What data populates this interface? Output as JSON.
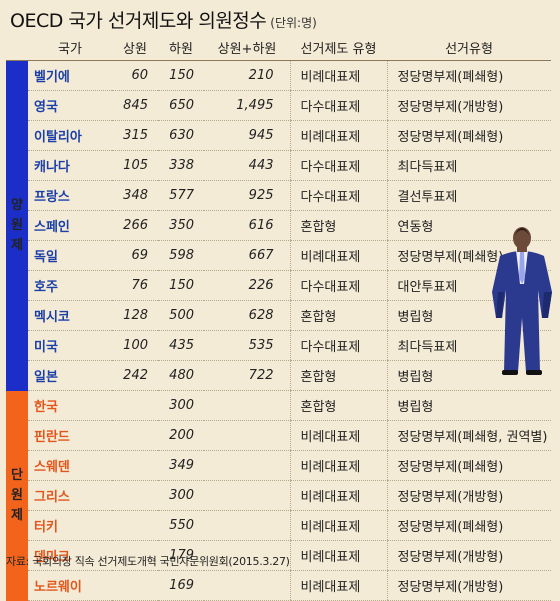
{
  "title": "OECD 국가 선거제도와 의원정수",
  "unit": "(단위:명)",
  "headers": [
    "국가",
    "상원",
    "하원",
    "상원+하원",
    "선거제도 유형",
    "선거유형"
  ],
  "groups": {
    "bicameral": "양원제",
    "unicameral": "단원제"
  },
  "bicameral_rows": [
    {
      "country": "벨기에",
      "upper": "60",
      "lower": "150",
      "total": "210",
      "system": "비례대표제",
      "type": "정당명부제(폐쇄형)"
    },
    {
      "country": "영국",
      "upper": "845",
      "lower": "650",
      "total": "1,495",
      "system": "다수대표제",
      "type": "정당명부제(개방형)"
    },
    {
      "country": "이탈리아",
      "upper": "315",
      "lower": "630",
      "total": "945",
      "system": "비례대표제",
      "type": "정당명부제(폐쇄형)"
    },
    {
      "country": "캐나다",
      "upper": "105",
      "lower": "338",
      "total": "443",
      "system": "다수대표제",
      "type": "최다득표제"
    },
    {
      "country": "프랑스",
      "upper": "348",
      "lower": "577",
      "total": "925",
      "system": "다수대표제",
      "type": "결선투표제"
    },
    {
      "country": "스페인",
      "upper": "266",
      "lower": "350",
      "total": "616",
      "system": "혼합형",
      "type": "연동형"
    },
    {
      "country": "독일",
      "upper": "69",
      "lower": "598",
      "total": "667",
      "system": "비례대표제",
      "type": "정당명부제(폐쇄형)"
    },
    {
      "country": "호주",
      "upper": "76",
      "lower": "150",
      "total": "226",
      "system": "다수대표제",
      "type": "대안투표제"
    },
    {
      "country": "멕시코",
      "upper": "128",
      "lower": "500",
      "total": "628",
      "system": "혼합형",
      "type": "병립형"
    },
    {
      "country": "미국",
      "upper": "100",
      "lower": "435",
      "total": "535",
      "system": "다수대표제",
      "type": "최다득표제"
    },
    {
      "country": "일본",
      "upper": "242",
      "lower": "480",
      "total": "722",
      "system": "혼합형",
      "type": "병립형"
    }
  ],
  "unicameral_rows": [
    {
      "country": "한국",
      "upper": "",
      "lower": "300",
      "total": "",
      "system": "혼합형",
      "type": "병립형"
    },
    {
      "country": "핀란드",
      "upper": "",
      "lower": "200",
      "total": "",
      "system": "비례대표제",
      "type": "정당명부제(폐쇄형, 권역별)"
    },
    {
      "country": "스웨덴",
      "upper": "",
      "lower": "349",
      "total": "",
      "system": "비례대표제",
      "type": "정당명부제(폐쇄형)"
    },
    {
      "country": "그리스",
      "upper": "",
      "lower": "300",
      "total": "",
      "system": "비례대표제",
      "type": "정당명부제(개방형)"
    },
    {
      "country": "터키",
      "upper": "",
      "lower": "550",
      "total": "",
      "system": "비례대표제",
      "type": "정당명부제(폐쇄형)"
    },
    {
      "country": "덴마크",
      "upper": "",
      "lower": "179",
      "total": "",
      "system": "비례대표제",
      "type": "정당명부제(개방형)"
    },
    {
      "country": "노르웨이",
      "upper": "",
      "lower": "169",
      "total": "",
      "system": "비례대표제",
      "type": "정당명부제(개방형)"
    }
  ],
  "source": "자료: 국회의장 직속 선거제도개혁 국민자문위원회(2015.3.27)"
}
